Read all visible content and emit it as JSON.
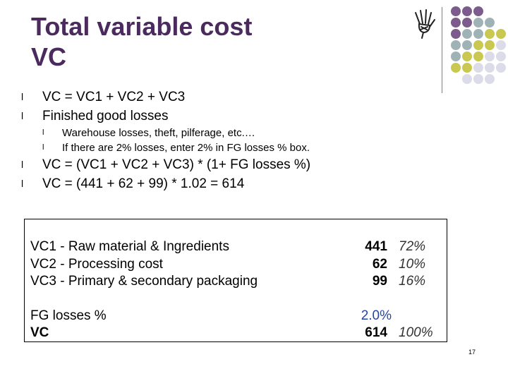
{
  "slide": {
    "title_line1": "Total variable cost",
    "title_line2": "VC",
    "page_number": "17"
  },
  "bullets": {
    "b1": "VC = VC1 + VC2 + VC3",
    "b2": "Finished good losses",
    "b2_sub1": "Warehouse losses, theft, pilferage, etc.…",
    "b2_sub2": "If there are 2% losses, enter 2% in FG losses % box.",
    "b3": "VC = (VC1 + VC2 + VC3) * (1+ FG losses %)",
    "b4": "VC = (441 + 62 + 99) * 1.02 = 614"
  },
  "table": {
    "rows": [
      {
        "label": "VC1 - Raw material & Ingredients",
        "value": "441",
        "pct": "72%"
      },
      {
        "label": "VC2 - Processing cost",
        "value": "62",
        "pct": "10%"
      },
      {
        "label": "VC3 - Primary & secondary packaging",
        "value": "99",
        "pct": "16%"
      }
    ],
    "fg_label": "FG losses %",
    "fg_value": "2.0%",
    "vc_label": "VC",
    "vc_value": "614",
    "vc_pct": "100%"
  },
  "decor": {
    "dot_colors": [
      "#7b5c8c",
      "#9fb3b6",
      "#c9c951",
      "#dcdce8"
    ],
    "logo_icon": "hand-icon"
  }
}
